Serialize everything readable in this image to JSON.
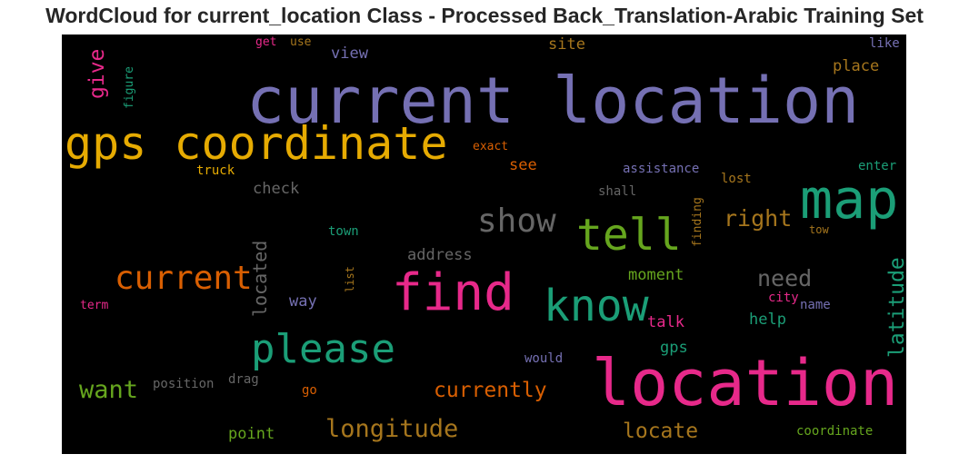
{
  "title": "WordCloud for current_location Class - Processed Back_Translation-Arabic Training Set",
  "words": [
    {
      "text": "current location",
      "color": "#7570b3"
    },
    {
      "text": "location",
      "color": "#e7298a"
    },
    {
      "text": "gps coordinate",
      "color": "#e6ab02"
    },
    {
      "text": "map",
      "color": "#1b9e77"
    },
    {
      "text": "find",
      "color": "#e7298a"
    },
    {
      "text": "know",
      "color": "#1b9e77"
    },
    {
      "text": "tell",
      "color": "#66a61e"
    },
    {
      "text": "please",
      "color": "#1b9e77"
    },
    {
      "text": "current",
      "color": "#d95f02"
    },
    {
      "text": "show",
      "color": "#666666"
    },
    {
      "text": "longitude",
      "color": "#a6761d"
    },
    {
      "text": "latitude",
      "color": "#1b9e77"
    },
    {
      "text": "give",
      "color": "#e7298a"
    },
    {
      "text": "right",
      "color": "#a6761d"
    },
    {
      "text": "need",
      "color": "#666666"
    },
    {
      "text": "want",
      "color": "#66a61e"
    },
    {
      "text": "currently",
      "color": "#d95f02"
    },
    {
      "text": "locate",
      "color": "#a6761d"
    },
    {
      "text": "located",
      "color": "#666666"
    },
    {
      "text": "address",
      "color": "#666666"
    },
    {
      "text": "check",
      "color": "#666666"
    },
    {
      "text": "site",
      "color": "#a6761d"
    },
    {
      "text": "place",
      "color": "#a6761d"
    },
    {
      "text": "view",
      "color": "#7570b3"
    },
    {
      "text": "see",
      "color": "#d95f02"
    },
    {
      "text": "moment",
      "color": "#66a61e"
    },
    {
      "text": "help",
      "color": "#1b9e77"
    },
    {
      "text": "talk",
      "color": "#e7298a"
    },
    {
      "text": "gps",
      "color": "#1b9e77"
    },
    {
      "text": "way",
      "color": "#7570b3"
    },
    {
      "text": "point",
      "color": "#66a61e"
    },
    {
      "text": "assistance",
      "color": "#7570b3"
    },
    {
      "text": "lost",
      "color": "#a6761d"
    },
    {
      "text": "enter",
      "color": "#1b9e77"
    },
    {
      "text": "shall",
      "color": "#666666"
    },
    {
      "text": "town",
      "color": "#1b9e77"
    },
    {
      "text": "tow",
      "color": "#a6761d"
    },
    {
      "text": "city",
      "color": "#e7298a"
    },
    {
      "text": "name",
      "color": "#7570b3"
    },
    {
      "text": "finding",
      "color": "#a6761d"
    },
    {
      "text": "list",
      "color": "#a6761d"
    },
    {
      "text": "exact",
      "color": "#d95f02"
    },
    {
      "text": "truck",
      "color": "#e6ab02"
    },
    {
      "text": "figure",
      "color": "#1b9e77"
    },
    {
      "text": "get",
      "color": "#e7298a"
    },
    {
      "text": "use",
      "color": "#a6761d"
    },
    {
      "text": "like",
      "color": "#7570b3"
    },
    {
      "text": "term",
      "color": "#e7298a"
    },
    {
      "text": "would",
      "color": "#7570b3"
    },
    {
      "text": "position",
      "color": "#666666"
    },
    {
      "text": "drag",
      "color": "#666666"
    },
    {
      "text": "go",
      "color": "#d95f02"
    },
    {
      "text": "coordinate",
      "color": "#66a61e"
    }
  ]
}
